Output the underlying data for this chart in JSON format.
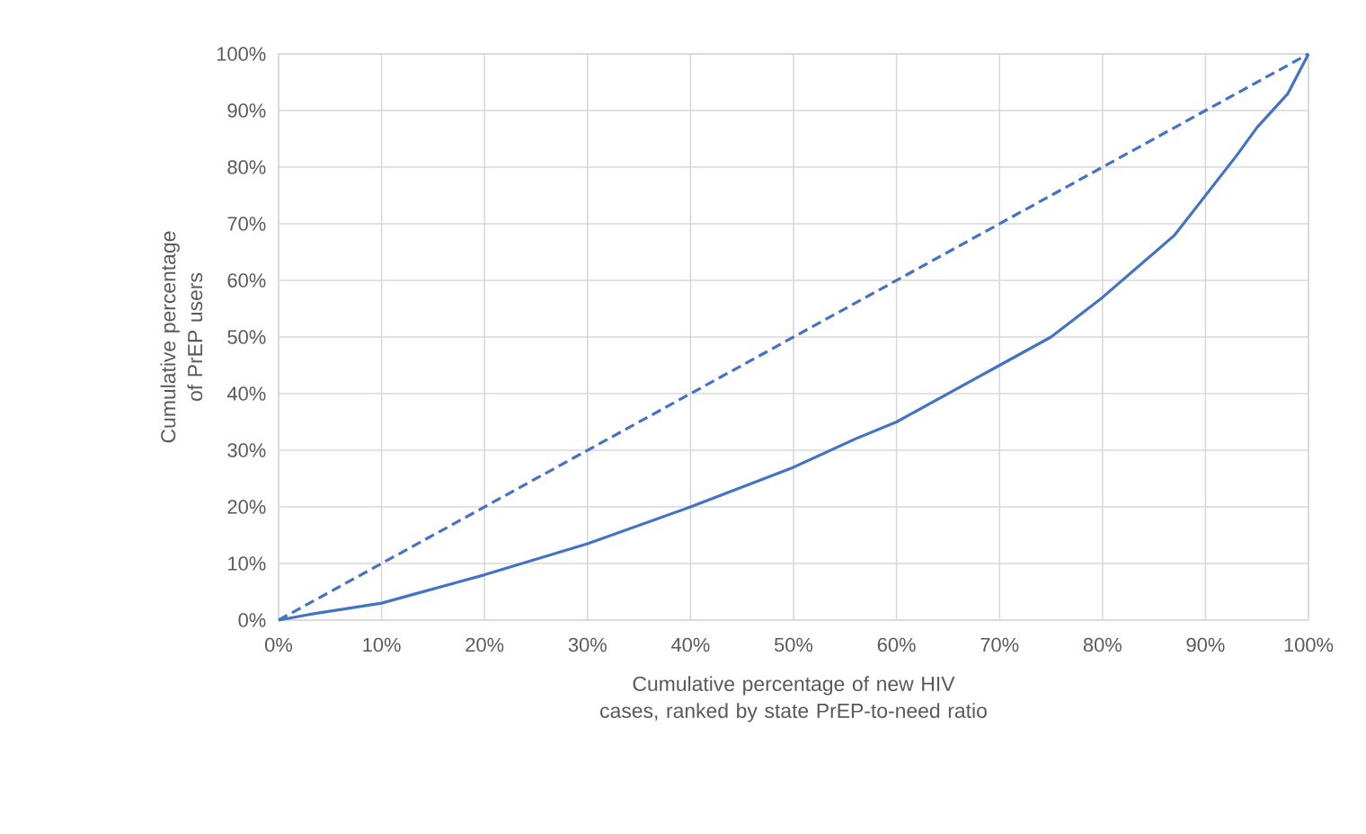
{
  "chart_data": {
    "type": "line",
    "xlabel": "Cumulative percentage of new HIV cases, ranked by state PrEP-to-need ratio",
    "ylabel": "Cumulative percentage of PrEP users",
    "xlim": [
      0,
      100
    ],
    "ylim": [
      0,
      100
    ],
    "xticks": [
      {
        "value": 0,
        "label": "0%"
      },
      {
        "value": 10,
        "label": "10%"
      },
      {
        "value": 20,
        "label": "20%"
      },
      {
        "value": 30,
        "label": "30%"
      },
      {
        "value": 40,
        "label": "40%"
      },
      {
        "value": 50,
        "label": "50%"
      },
      {
        "value": 60,
        "label": "60%"
      },
      {
        "value": 70,
        "label": "70%"
      },
      {
        "value": 80,
        "label": "80%"
      },
      {
        "value": 90,
        "label": "90%"
      },
      {
        "value": 100,
        "label": "100%"
      }
    ],
    "yticks": [
      {
        "value": 0,
        "label": "0%"
      },
      {
        "value": 10,
        "label": "10%"
      },
      {
        "value": 20,
        "label": "20%"
      },
      {
        "value": 30,
        "label": "30%"
      },
      {
        "value": 40,
        "label": "40%"
      },
      {
        "value": 50,
        "label": "50%"
      },
      {
        "value": 60,
        "label": "60%"
      },
      {
        "value": 70,
        "label": "70%"
      },
      {
        "value": 80,
        "label": "80%"
      },
      {
        "value": 90,
        "label": "90%"
      },
      {
        "value": 100,
        "label": "100%"
      }
    ],
    "grid": true,
    "marker": "none",
    "series": [
      {
        "color": "#4472c4",
        "line_style": "solid",
        "x": [
          0,
          3,
          10,
          13,
          20,
          30,
          40,
          50,
          56,
          60,
          67,
          70,
          75,
          80,
          87,
          90,
          93,
          95,
          98,
          100
        ],
        "values": [
          0,
          1,
          3,
          4.5,
          8,
          13.5,
          20,
          27,
          32,
          35,
          42,
          45,
          50,
          57,
          68,
          75,
          82,
          87,
          93,
          100
        ]
      },
      {
        "color": "#4472c4",
        "line_style": "dashed",
        "x": [
          0,
          100
        ],
        "values": [
          0,
          100
        ]
      }
    ]
  }
}
